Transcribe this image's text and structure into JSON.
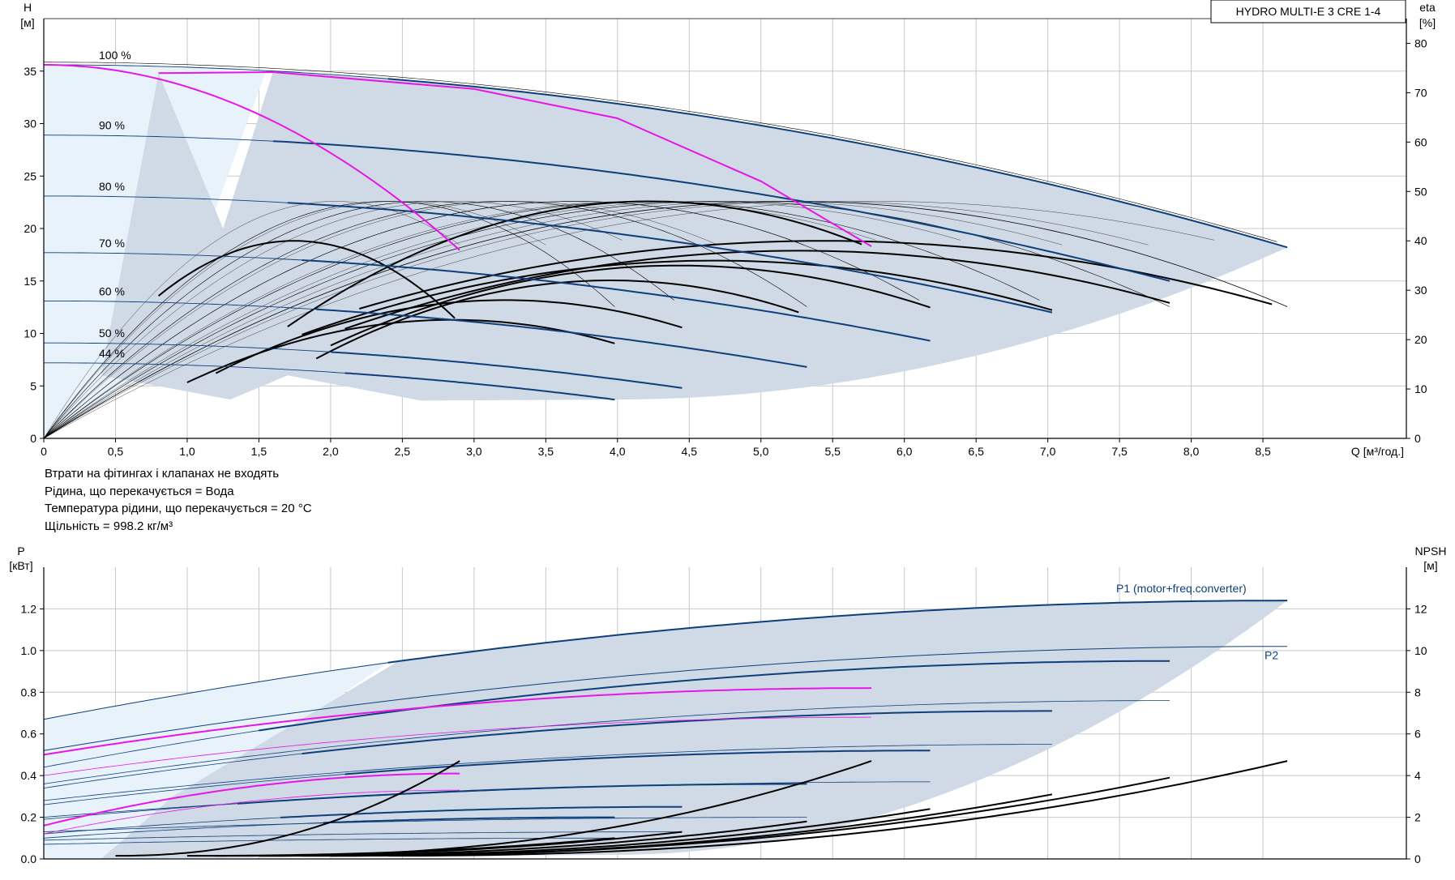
{
  "chart_data": [
    {
      "type": "line",
      "title": "HYDRO MULTI-E 3 CRE 1-4",
      "xlabel": "Q [м³/год.]",
      "ylabel": "H\n[м]",
      "ylabel_right": "eta\n[%]",
      "xlim": [
        0,
        9.5
      ],
      "ylim": [
        0,
        40
      ],
      "ylim_right": [
        0,
        85
      ],
      "x_ticks": [
        0,
        0.5,
        1.0,
        1.5,
        2.0,
        2.5,
        3.0,
        3.5,
        4.0,
        4.5,
        5.0,
        5.5,
        6.0,
        6.5,
        7.0,
        7.5,
        8.0,
        8.5
      ],
      "x_tick_labels": [
        "0",
        "0,5",
        "1,0",
        "1,5",
        "2,0",
        "2,5",
        "3,0",
        "3,5",
        "4,0",
        "4,5",
        "5,0",
        "5,5",
        "6,0",
        "6,5",
        "7,0",
        "7,5",
        "8,0",
        "8,5"
      ],
      "y_ticks": [
        0,
        5,
        10,
        15,
        20,
        25,
        30,
        35
      ],
      "y_ticks_right": [
        0,
        10,
        20,
        30,
        40,
        50,
        60,
        70,
        80
      ],
      "grid": true,
      "speed_labels": [
        "100 %",
        "90 %",
        "80 %",
        "70 %",
        "60 %",
        "50 %",
        "44 %"
      ],
      "head_curves": [
        {
          "name": "100 %",
          "h0": 35.6,
          "qmax": 8.67,
          "hend": 18.2
        },
        {
          "name": "90 %",
          "h0": 28.9,
          "qmax": 7.85,
          "hend": 15.0
        },
        {
          "name": "80 %",
          "h0": 23.1,
          "qmax": 7.03,
          "hend": 12.0
        },
        {
          "name": "70 %",
          "h0": 17.7,
          "qmax": 6.18,
          "hend": 9.3
        },
        {
          "name": "60 %",
          "h0": 13.1,
          "qmax": 5.32,
          "hend": 6.8
        },
        {
          "name": "50 %",
          "h0": 9.1,
          "qmax": 4.45,
          "hend": 4.8
        },
        {
          "name": "44 %",
          "h0": 7.2,
          "qmax": 3.98,
          "hend": 3.7
        }
      ],
      "max_efficiency_pct": 48,
      "duty_curve_pink": [
        [
          0.8,
          34.8
        ],
        [
          1.6,
          34.9
        ],
        [
          3.0,
          33.3
        ],
        [
          4.0,
          30.5
        ],
        [
          5.0,
          24.5
        ],
        [
          5.77,
          18.3
        ]
      ]
    },
    {
      "type": "line",
      "xlabel": "",
      "ylabel": "P\n[кВт]",
      "ylabel_right": "NPSH\n[м]",
      "xlim": [
        0,
        9.5
      ],
      "ylim": [
        0,
        1.4
      ],
      "ylim_right": [
        0,
        14
      ],
      "y_ticks": [
        0,
        0.2,
        0.4,
        0.6,
        0.8,
        1.0,
        1.2
      ],
      "y_tick_labels": [
        "0.0",
        "0.2",
        "0.4",
        "0.6",
        "0.8",
        "1.0",
        "1.2"
      ],
      "y_ticks_right": [
        0,
        2,
        4,
        6,
        8,
        10,
        12
      ],
      "grid": true,
      "series": [
        {
          "name": "P1 (motor+freq.converter)",
          "p0": 0.67,
          "qmax": 8.67,
          "pend": 1.24
        },
        {
          "name": "P2",
          "p0": 0.52,
          "qmax": 8.67,
          "pend": 1.02
        }
      ]
    }
  ],
  "notes": [
    "Втрати на фітингах і клапанах не входять",
    "Рідина, що перекачується = Вода",
    "Температура рідини, що перекачується = 20 °C",
    "Щільність = 998.2 кг/м³"
  ],
  "colors": {
    "head_curve": "#0e3f7a",
    "duty_curve": "#e815e8",
    "region_fill": "#cfdae6",
    "region_light": "#e8f2fb",
    "efficiency_curve": "#000000",
    "grid": "#c8c8c8"
  }
}
